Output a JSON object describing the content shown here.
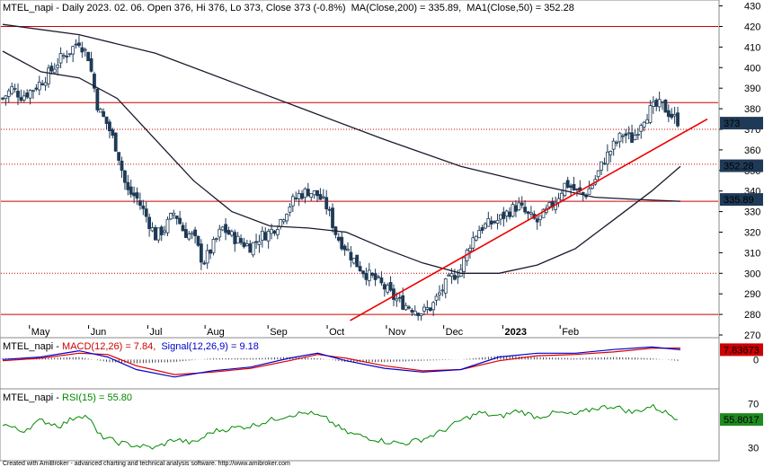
{
  "header": {
    "price": "MTEL_napi - Daily 2023. 02. 06. Open 376, Hi 376, Lo 373, Close 373 (-0.8%)",
    "ma200": "MA(Close,200) = 335.89,",
    "ma50": "MA1(Close,50) = 352.28",
    "macd_name": "MTEL_napi - ",
    "macd_label": "MACD(12,26) = 7.84,",
    "signal_label": "Signal(12,26,9) = 9.18",
    "rsi_name": "MTEL_napi - ",
    "rsi_label": "RSI(15) = 55.80"
  },
  "footer": "Created with AmiBroker - advanced charting and technical analysis software. http://www.amibroker.com",
  "colors": {
    "candle": "#1f3a56",
    "resistance": "#cc0000",
    "trendline": "#ee0000",
    "ma": "#1a1a2e",
    "macd": "#0000cc",
    "signal": "#dd0000",
    "rsi": "#008800",
    "label_box": "#1f3a56",
    "macd_box": "#cc0000",
    "rsi_box": "#1f8a1f"
  },
  "chart_data": [
    {
      "type": "candlestick",
      "title": "MTEL_napi - Daily",
      "x_tick_labels": [
        "May",
        "Jun",
        "Jul",
        "Aug",
        "Sep",
        "Oct",
        "Nov",
        "Dec",
        "2023",
        "Feb"
      ],
      "y_ticks": [
        270,
        280,
        290,
        300,
        310,
        320,
        330,
        340,
        350,
        360,
        370,
        380,
        390,
        400,
        410,
        420,
        430
      ],
      "ylim": [
        270,
        432
      ],
      "price_labels": {
        "close": "373",
        "ma50": "352.28",
        "ma200": "335.89"
      },
      "horizontal_levels_solid": [
        420,
        383,
        335,
        280
      ],
      "horizontal_levels_dotted": [
        370,
        353,
        300
      ],
      "trendline": {
        "from": [
          "Oct",
          277
        ],
        "to": [
          "Feb",
          375
        ]
      },
      "close_path": [
        {
          "x": 0,
          "y": 385
        },
        {
          "x": 5,
          "y": 390
        },
        {
          "x": 10,
          "y": 386
        },
        {
          "x": 15,
          "y": 389
        },
        {
          "x": 20,
          "y": 393
        },
        {
          "x": 25,
          "y": 398
        },
        {
          "x": 30,
          "y": 404
        },
        {
          "x": 35,
          "y": 408
        },
        {
          "x": 40,
          "y": 413
        },
        {
          "x": 45,
          "y": 405
        },
        {
          "x": 50,
          "y": 380
        },
        {
          "x": 55,
          "y": 372
        },
        {
          "x": 60,
          "y": 360
        },
        {
          "x": 65,
          "y": 340
        },
        {
          "x": 70,
          "y": 337
        },
        {
          "x": 75,
          "y": 328
        },
        {
          "x": 80,
          "y": 318
        },
        {
          "x": 85,
          "y": 322
        },
        {
          "x": 90,
          "y": 330
        },
        {
          "x": 95,
          "y": 320
        },
        {
          "x": 100,
          "y": 318
        },
        {
          "x": 105,
          "y": 305
        },
        {
          "x": 110,
          "y": 313
        },
        {
          "x": 115,
          "y": 322
        },
        {
          "x": 120,
          "y": 318
        },
        {
          "x": 125,
          "y": 315
        },
        {
          "x": 130,
          "y": 313
        },
        {
          "x": 135,
          "y": 318
        },
        {
          "x": 140,
          "y": 320
        },
        {
          "x": 145,
          "y": 325
        },
        {
          "x": 150,
          "y": 333
        },
        {
          "x": 155,
          "y": 338
        },
        {
          "x": 160,
          "y": 340
        },
        {
          "x": 165,
          "y": 338
        },
        {
          "x": 170,
          "y": 332
        },
        {
          "x": 175,
          "y": 318
        },
        {
          "x": 180,
          "y": 312
        },
        {
          "x": 185,
          "y": 305
        },
        {
          "x": 190,
          "y": 300
        },
        {
          "x": 195,
          "y": 297
        },
        {
          "x": 200,
          "y": 293
        },
        {
          "x": 205,
          "y": 288
        },
        {
          "x": 210,
          "y": 285
        },
        {
          "x": 215,
          "y": 283
        },
        {
          "x": 220,
          "y": 281
        },
        {
          "x": 225,
          "y": 284
        },
        {
          "x": 230,
          "y": 292
        },
        {
          "x": 235,
          "y": 298
        },
        {
          "x": 240,
          "y": 302
        },
        {
          "x": 245,
          "y": 315
        },
        {
          "x": 250,
          "y": 322
        },
        {
          "x": 255,
          "y": 324
        },
        {
          "x": 260,
          "y": 326
        },
        {
          "x": 265,
          "y": 330
        },
        {
          "x": 270,
          "y": 333
        },
        {
          "x": 275,
          "y": 328
        },
        {
          "x": 280,
          "y": 325
        },
        {
          "x": 285,
          "y": 330
        },
        {
          "x": 290,
          "y": 336
        },
        {
          "x": 295,
          "y": 344
        },
        {
          "x": 300,
          "y": 340
        },
        {
          "x": 305,
          "y": 338
        },
        {
          "x": 310,
          "y": 345
        },
        {
          "x": 315,
          "y": 355
        },
        {
          "x": 320,
          "y": 362
        },
        {
          "x": 325,
          "y": 368
        },
        {
          "x": 330,
          "y": 365
        },
        {
          "x": 335,
          "y": 375
        },
        {
          "x": 340,
          "y": 380
        },
        {
          "x": 345,
          "y": 382
        },
        {
          "x": 350,
          "y": 377
        },
        {
          "x": 355,
          "y": 373
        }
      ],
      "ma50_path": [
        {
          "x": 0,
          "y": 408
        },
        {
          "x": 20,
          "y": 398
        },
        {
          "x": 40,
          "y": 395
        },
        {
          "x": 60,
          "y": 385
        },
        {
          "x": 80,
          "y": 365
        },
        {
          "x": 100,
          "y": 345
        },
        {
          "x": 120,
          "y": 330
        },
        {
          "x": 140,
          "y": 323
        },
        {
          "x": 160,
          "y": 322
        },
        {
          "x": 180,
          "y": 320
        },
        {
          "x": 200,
          "y": 312
        },
        {
          "x": 220,
          "y": 305
        },
        {
          "x": 240,
          "y": 300
        },
        {
          "x": 260,
          "y": 300
        },
        {
          "x": 280,
          "y": 304
        },
        {
          "x": 300,
          "y": 312
        },
        {
          "x": 320,
          "y": 326
        },
        {
          "x": 340,
          "y": 340
        },
        {
          "x": 355,
          "y": 352
        }
      ],
      "ma200_path": [
        {
          "x": 0,
          "y": 421
        },
        {
          "x": 40,
          "y": 416
        },
        {
          "x": 80,
          "y": 407
        },
        {
          "x": 120,
          "y": 393
        },
        {
          "x": 160,
          "y": 379
        },
        {
          "x": 200,
          "y": 365
        },
        {
          "x": 240,
          "y": 352
        },
        {
          "x": 280,
          "y": 343
        },
        {
          "x": 310,
          "y": 337
        },
        {
          "x": 330,
          "y": 336
        },
        {
          "x": 355,
          "y": 335
        }
      ]
    },
    {
      "type": "line",
      "title": "MACD(12,26)",
      "y_ticks": [
        0
      ],
      "ylim": [
        -22,
        16
      ],
      "price_labels": {
        "macd": "7.83673"
      },
      "series": [
        {
          "name": "MACD(12,26)",
          "values": [
            {
              "x": 0,
              "y": 0
            },
            {
              "x": 20,
              "y": 2
            },
            {
              "x": 40,
              "y": 7
            },
            {
              "x": 55,
              "y": 2
            },
            {
              "x": 70,
              "y": -8
            },
            {
              "x": 90,
              "y": -14
            },
            {
              "x": 110,
              "y": -9
            },
            {
              "x": 130,
              "y": -6
            },
            {
              "x": 150,
              "y": 1
            },
            {
              "x": 165,
              "y": 5
            },
            {
              "x": 180,
              "y": -1
            },
            {
              "x": 200,
              "y": -7
            },
            {
              "x": 220,
              "y": -10
            },
            {
              "x": 240,
              "y": -8
            },
            {
              "x": 260,
              "y": 2
            },
            {
              "x": 280,
              "y": 5
            },
            {
              "x": 300,
              "y": 5
            },
            {
              "x": 320,
              "y": 8
            },
            {
              "x": 340,
              "y": 10
            },
            {
              "x": 355,
              "y": 7.84
            }
          ]
        },
        {
          "name": "Signal(12,26,9)",
          "values": [
            {
              "x": 0,
              "y": -1
            },
            {
              "x": 20,
              "y": 1
            },
            {
              "x": 40,
              "y": 5
            },
            {
              "x": 55,
              "y": 4
            },
            {
              "x": 70,
              "y": -5
            },
            {
              "x": 90,
              "y": -12
            },
            {
              "x": 110,
              "y": -10
            },
            {
              "x": 130,
              "y": -7
            },
            {
              "x": 150,
              "y": -1
            },
            {
              "x": 165,
              "y": 4
            },
            {
              "x": 180,
              "y": 1
            },
            {
              "x": 200,
              "y": -5
            },
            {
              "x": 220,
              "y": -9
            },
            {
              "x": 240,
              "y": -8
            },
            {
              "x": 260,
              "y": -1
            },
            {
              "x": 280,
              "y": 3
            },
            {
              "x": 300,
              "y": 4
            },
            {
              "x": 320,
              "y": 6
            },
            {
              "x": 340,
              "y": 9
            },
            {
              "x": 355,
              "y": 9.18
            }
          ]
        }
      ]
    },
    {
      "type": "line",
      "title": "RSI(15)",
      "y_ticks": [
        30,
        70
      ],
      "ylim": [
        20,
        82
      ],
      "price_labels": {
        "rsi": "55.8017"
      },
      "series": [
        {
          "name": "RSI(15)",
          "values": [
            {
              "x": 0,
              "y": 52
            },
            {
              "x": 10,
              "y": 45
            },
            {
              "x": 20,
              "y": 55
            },
            {
              "x": 30,
              "y": 50
            },
            {
              "x": 40,
              "y": 60
            },
            {
              "x": 45,
              "y": 58
            },
            {
              "x": 50,
              "y": 42
            },
            {
              "x": 60,
              "y": 35
            },
            {
              "x": 70,
              "y": 32
            },
            {
              "x": 80,
              "y": 30
            },
            {
              "x": 90,
              "y": 38
            },
            {
              "x": 100,
              "y": 34
            },
            {
              "x": 110,
              "y": 45
            },
            {
              "x": 120,
              "y": 48
            },
            {
              "x": 130,
              "y": 50
            },
            {
              "x": 140,
              "y": 55
            },
            {
              "x": 150,
              "y": 60
            },
            {
              "x": 160,
              "y": 62
            },
            {
              "x": 170,
              "y": 56
            },
            {
              "x": 180,
              "y": 44
            },
            {
              "x": 190,
              "y": 40
            },
            {
              "x": 200,
              "y": 36
            },
            {
              "x": 210,
              "y": 34
            },
            {
              "x": 220,
              "y": 38
            },
            {
              "x": 230,
              "y": 45
            },
            {
              "x": 240,
              "y": 55
            },
            {
              "x": 250,
              "y": 62
            },
            {
              "x": 260,
              "y": 58
            },
            {
              "x": 270,
              "y": 64
            },
            {
              "x": 280,
              "y": 58
            },
            {
              "x": 290,
              "y": 62
            },
            {
              "x": 300,
              "y": 60
            },
            {
              "x": 310,
              "y": 66
            },
            {
              "x": 320,
              "y": 68
            },
            {
              "x": 330,
              "y": 62
            },
            {
              "x": 340,
              "y": 68
            },
            {
              "x": 345,
              "y": 64
            },
            {
              "x": 355,
              "y": 55.8
            }
          ]
        }
      ]
    }
  ]
}
